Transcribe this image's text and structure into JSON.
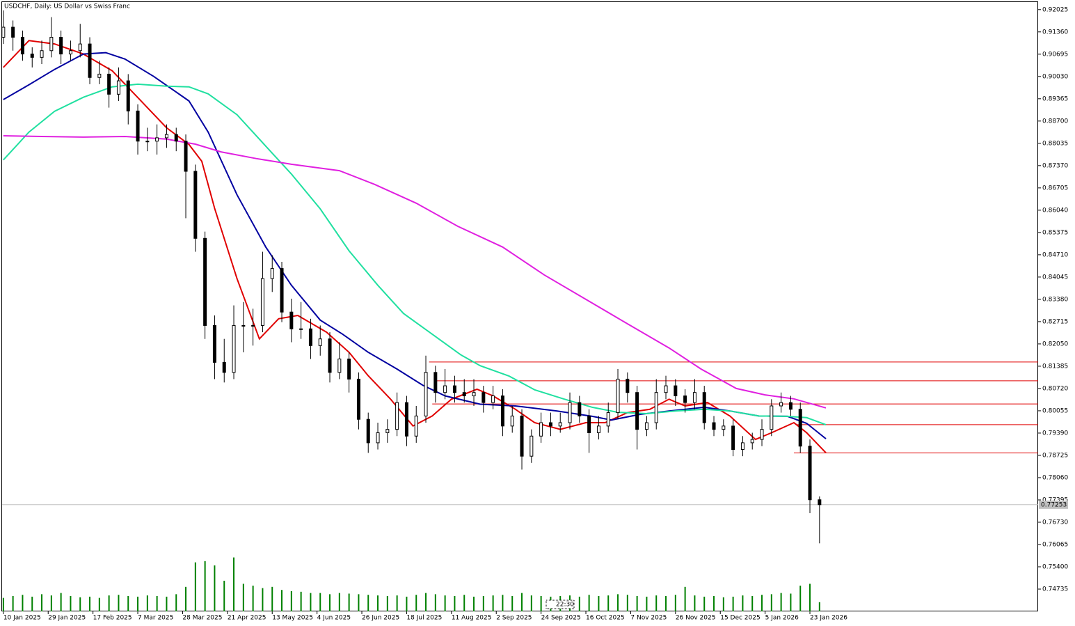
{
  "chart_data": {
    "type": "candlestick",
    "title": "USDCHF, Daily:  US Dollar vs Swiss Franc",
    "timer": "22:30",
    "last_price": 0.77253,
    "ylim": [
      0.7407,
      0.9227
    ],
    "xlim": [
      -0.4,
      323.3
    ],
    "yticks": [
      0.92025,
      {
        "value": 0.9136,
        "label": "0.91360"
      },
      0.90695,
      {
        "value": 0.9003,
        "label": "0.90030"
      },
      0.89365,
      {
        "value": 0.887,
        "label": "0.88700"
      },
      0.88035,
      {
        "value": 0.8737,
        "label": "0.87370"
      },
      0.86705,
      {
        "value": 0.8604,
        "label": "0.86040"
      },
      0.85375,
      {
        "value": 0.8471,
        "label": "0.84710"
      },
      0.84045,
      {
        "value": 0.8338,
        "label": "0.83380"
      },
      0.82715,
      {
        "value": 0.8205,
        "label": "0.82050"
      },
      0.81385,
      {
        "value": 0.8072,
        "label": "0.80720"
      },
      0.80055,
      {
        "value": 0.7939,
        "label": "0.79390"
      },
      0.78725,
      {
        "value": 0.7806,
        "label": "0.78060"
      },
      0.77395,
      {
        "value": 0.7673,
        "label": "0.76730"
      },
      0.76065,
      {
        "value": 0.754,
        "label": "0.75400"
      },
      0.74735
    ],
    "xticks": [
      {
        "value": 0,
        "label": "10 Jan 2025"
      },
      {
        "value": 14,
        "label": "29 Jan 2025"
      },
      {
        "value": 28,
        "label": "17 Feb 2025"
      },
      {
        "value": 42,
        "label": "7 Mar 2025"
      },
      {
        "value": 56,
        "label": "28 Mar 2025"
      },
      {
        "value": 70,
        "label": "21 Apr 2025"
      },
      {
        "value": 84,
        "label": "13 May 2025"
      },
      {
        "value": 98,
        "label": "4 Jun 2025"
      },
      {
        "value": 112,
        "label": "26 Jun 2025"
      },
      {
        "value": 126,
        "label": "18 Jul 2025"
      },
      {
        "value": 140,
        "label": "11 Aug 2025"
      },
      {
        "value": 154,
        "label": "2 Sep 2025"
      },
      {
        "value": 168,
        "label": "24 Sep 2025"
      },
      {
        "value": 182,
        "label": "16 Oct 2025"
      },
      {
        "value": 196,
        "label": "7 Nov 2025"
      },
      {
        "value": 210,
        "label": "26 Nov 2025"
      },
      {
        "value": 224,
        "label": "15 Dec 2025"
      },
      {
        "value": 238,
        "label": "5 Jan 2026"
      },
      {
        "value": 252,
        "label": "23 Jan 2026"
      }
    ],
    "candle_step": 3,
    "candles": [
      [
        0.912,
        0.92,
        0.91,
        0.915
      ],
      [
        0.915,
        0.917,
        0.908,
        0.912
      ],
      [
        0.912,
        0.914,
        0.905,
        0.907
      ],
      [
        0.907,
        0.909,
        0.903,
        0.906
      ],
      [
        0.906,
        0.911,
        0.904,
        0.908
      ],
      [
        0.908,
        0.918,
        0.906,
        0.912
      ],
      [
        0.912,
        0.914,
        0.904,
        0.907
      ],
      [
        0.907,
        0.911,
        0.905,
        0.908
      ],
      [
        0.908,
        0.916,
        0.906,
        0.91
      ],
      [
        0.91,
        0.912,
        0.898,
        0.9
      ],
      [
        0.9,
        0.905,
        0.898,
        0.901
      ],
      [
        0.901,
        0.903,
        0.891,
        0.895
      ],
      [
        0.895,
        0.903,
        0.893,
        0.899
      ],
      [
        0.899,
        0.901,
        0.886,
        0.89
      ],
      [
        0.89,
        0.892,
        0.877,
        0.881
      ],
      [
        0.881,
        0.885,
        0.878,
        0.881
      ],
      [
        0.881,
        0.886,
        0.877,
        0.882
      ],
      [
        0.882,
        0.886,
        0.879,
        0.883
      ],
      [
        0.883,
        0.885,
        0.878,
        0.881
      ],
      [
        0.881,
        0.883,
        0.858,
        0.872
      ],
      [
        0.872,
        0.874,
        0.848,
        0.852
      ],
      [
        0.852,
        0.854,
        0.822,
        0.826
      ],
      [
        0.826,
        0.829,
        0.81,
        0.815
      ],
      [
        0.815,
        0.822,
        0.809,
        0.812
      ],
      [
        0.812,
        0.832,
        0.81,
        0.826
      ],
      [
        0.826,
        0.833,
        0.818,
        0.826
      ],
      [
        0.826,
        0.831,
        0.82,
        0.826
      ],
      [
        0.826,
        0.848,
        0.824,
        0.84
      ],
      [
        0.84,
        0.847,
        0.836,
        0.843
      ],
      [
        0.843,
        0.845,
        0.827,
        0.83
      ],
      [
        0.83,
        0.834,
        0.821,
        0.825
      ],
      [
        0.825,
        0.833,
        0.822,
        0.825
      ],
      [
        0.825,
        0.828,
        0.816,
        0.82
      ],
      [
        0.82,
        0.826,
        0.817,
        0.822
      ],
      [
        0.822,
        0.824,
        0.809,
        0.812
      ],
      [
        0.812,
        0.821,
        0.81,
        0.816
      ],
      [
        0.816,
        0.818,
        0.806,
        0.81
      ],
      [
        0.81,
        0.812,
        0.795,
        0.798
      ],
      [
        0.798,
        0.8,
        0.788,
        0.791
      ],
      [
        0.791,
        0.797,
        0.789,
        0.794
      ],
      [
        0.794,
        0.798,
        0.791,
        0.795
      ],
      [
        0.795,
        0.806,
        0.793,
        0.803
      ],
      [
        0.803,
        0.805,
        0.79,
        0.793
      ],
      [
        0.793,
        0.802,
        0.791,
        0.799
      ],
      [
        0.799,
        0.817,
        0.797,
        0.812
      ],
      [
        0.812,
        0.814,
        0.803,
        0.806
      ],
      [
        0.806,
        0.813,
        0.804,
        0.808
      ],
      [
        0.808,
        0.811,
        0.803,
        0.806
      ],
      [
        0.806,
        0.81,
        0.803,
        0.805
      ],
      [
        0.805,
        0.81,
        0.802,
        0.806
      ],
      [
        0.806,
        0.808,
        0.8,
        0.803
      ],
      [
        0.803,
        0.808,
        0.801,
        0.805
      ],
      [
        0.805,
        0.807,
        0.793,
        0.796
      ],
      [
        0.796,
        0.802,
        0.794,
        0.799
      ],
      [
        0.799,
        0.801,
        0.783,
        0.787
      ],
      [
        0.787,
        0.795,
        0.785,
        0.793
      ],
      [
        0.793,
        0.8,
        0.791,
        0.797
      ],
      [
        0.797,
        0.8,
        0.793,
        0.796
      ],
      [
        0.796,
        0.8,
        0.794,
        0.797
      ],
      [
        0.797,
        0.806,
        0.795,
        0.803
      ],
      [
        0.803,
        0.805,
        0.797,
        0.799
      ],
      [
        0.799,
        0.801,
        0.788,
        0.794
      ],
      [
        0.794,
        0.799,
        0.792,
        0.796
      ],
      [
        0.796,
        0.803,
        0.794,
        0.8
      ],
      [
        0.8,
        0.813,
        0.798,
        0.81
      ],
      [
        0.81,
        0.812,
        0.803,
        0.806
      ],
      [
        0.806,
        0.808,
        0.789,
        0.795
      ],
      [
        0.795,
        0.799,
        0.793,
        0.797
      ],
      [
        0.797,
        0.81,
        0.795,
        0.806
      ],
      [
        0.806,
        0.811,
        0.804,
        0.808
      ],
      [
        0.808,
        0.81,
        0.802,
        0.805
      ],
      [
        0.805,
        0.807,
        0.8,
        0.803
      ],
      [
        0.803,
        0.81,
        0.801,
        0.806
      ],
      [
        0.806,
        0.808,
        0.795,
        0.797
      ],
      [
        0.797,
        0.799,
        0.793,
        0.795
      ],
      [
        0.795,
        0.798,
        0.793,
        0.796
      ],
      [
        0.796,
        0.798,
        0.787,
        0.789
      ],
      [
        0.789,
        0.793,
        0.787,
        0.791
      ],
      [
        0.791,
        0.794,
        0.789,
        0.792
      ],
      [
        0.792,
        0.798,
        0.79,
        0.795
      ],
      [
        0.795,
        0.804,
        0.793,
        0.802
      ],
      [
        0.802,
        0.806,
        0.8,
        0.803
      ],
      [
        0.803,
        0.805,
        0.799,
        0.801
      ],
      [
        0.801,
        0.803,
        0.788,
        0.79
      ],
      [
        0.79,
        0.792,
        0.77,
        0.774
      ],
      [
        0.774,
        0.775,
        0.761,
        0.77253
      ]
    ],
    "volume_ylim": [
      0,
      100
    ],
    "volumes": [
      22,
      25,
      27,
      24,
      28,
      26,
      30,
      25,
      23,
      24,
      22,
      26,
      27,
      25,
      24,
      26,
      25,
      24,
      28,
      40,
      80,
      82,
      75,
      50,
      88,
      45,
      42,
      38,
      40,
      35,
      33,
      32,
      30,
      30,
      28,
      30,
      29,
      28,
      27,
      26,
      25,
      26,
      24,
      27,
      30,
      28,
      26,
      25,
      27,
      24,
      25,
      26,
      27,
      25,
      30,
      26,
      25,
      24,
      25,
      26,
      24,
      27,
      25,
      26,
      28,
      27,
      25,
      24,
      26,
      25,
      27,
      40,
      26,
      24,
      25,
      23,
      24,
      26,
      25,
      27,
      28,
      30,
      29,
      42,
      45,
      15
    ],
    "colors": {
      "bull": "#ffffff",
      "bear": "#000000",
      "volume": "#008000",
      "levels": "#e00000",
      "price_line": "#c0c0c0"
    },
    "series": [
      {
        "color": "#e00000",
        "x": [
          0,
          8,
          16,
          25,
          34,
          42,
          51,
          58,
          62,
          66,
          73,
          80,
          86,
          92,
          101,
          108,
          114,
          121,
          128,
          134,
          140,
          148,
          153,
          160,
          166,
          174,
          182,
          188,
          195,
          202,
          208,
          213,
          220,
          227,
          235,
          240,
          247,
          251,
          257
        ],
        "values": [
          0.903,
          0.911,
          0.91,
          0.907,
          0.902,
          0.894,
          0.885,
          0.88,
          0.875,
          0.861,
          0.84,
          0.822,
          0.828,
          0.829,
          0.824,
          0.818,
          0.811,
          0.804,
          0.796,
          0.799,
          0.804,
          0.807,
          0.805,
          0.801,
          0.797,
          0.795,
          0.797,
          0.797,
          0.8,
          0.801,
          0.804,
          0.802,
          0.803,
          0.799,
          0.792,
          0.794,
          0.797,
          0.794,
          0.788
        ]
      },
      {
        "color": "#0000a0",
        "x": [
          0,
          8,
          16,
          25,
          32,
          38,
          47,
          58,
          64,
          73,
          82,
          90,
          99,
          106,
          114,
          123,
          131,
          138,
          149,
          160,
          173,
          184,
          190,
          199,
          208,
          219,
          227,
          236,
          245,
          251,
          257
        ],
        "values": [
          0.8934,
          0.8978,
          0.9024,
          0.907,
          0.9074,
          0.9055,
          0.9003,
          0.893,
          0.8837,
          0.865,
          0.8494,
          0.838,
          0.8276,
          0.8234,
          0.818,
          0.813,
          0.8082,
          0.805,
          0.8025,
          0.802,
          0.8005,
          0.7989,
          0.7978,
          0.7995,
          0.8005,
          0.8016,
          0.8005,
          0.799,
          0.7989,
          0.7968,
          0.7922
        ]
      },
      {
        "color": "#20e0a0",
        "x": [
          0,
          8,
          16,
          25,
          34,
          42,
          51,
          58,
          64,
          73,
          82,
          90,
          99,
          108,
          117,
          125,
          134,
          143,
          149,
          158,
          166,
          175,
          184,
          192,
          201,
          210,
          219,
          227,
          236,
          245,
          251,
          257
        ],
        "values": [
          0.8754,
          0.8837,
          0.8899,
          0.8941,
          0.8972,
          0.898,
          0.8974,
          0.8972,
          0.8951,
          0.8889,
          0.8795,
          0.8712,
          0.8608,
          0.8483,
          0.838,
          0.8296,
          0.8234,
          0.8172,
          0.814,
          0.8109,
          0.8068,
          0.8041,
          0.8016,
          0.8001,
          0.7997,
          0.8005,
          0.801,
          0.8005,
          0.799,
          0.7989,
          0.7985,
          0.7964
        ]
      },
      {
        "color": "#e020e0",
        "x": [
          0,
          12,
          25,
          38,
          51,
          60,
          68,
          79,
          90,
          105,
          116,
          129,
          142,
          156,
          169,
          182,
          195,
          208,
          218,
          229,
          238,
          247,
          257
        ],
        "values": [
          0.8826,
          0.8824,
          0.8822,
          0.8824,
          0.8816,
          0.8801,
          0.8778,
          0.8758,
          0.8741,
          0.8722,
          0.8681,
          0.8625,
          0.8556,
          0.8494,
          0.8411,
          0.8338,
          0.8265,
          0.8193,
          0.813,
          0.8072,
          0.8053,
          0.8041,
          0.8014
        ]
      }
    ],
    "levels": [
      {
        "start": 133,
        "value": 0.8151
      },
      {
        "start": 135,
        "value": 0.8095
      },
      {
        "start": 134,
        "value": 0.8026
      },
      {
        "start": 248,
        "value": 0.7964
      },
      {
        "start": 247,
        "value": 0.788
      }
    ]
  }
}
